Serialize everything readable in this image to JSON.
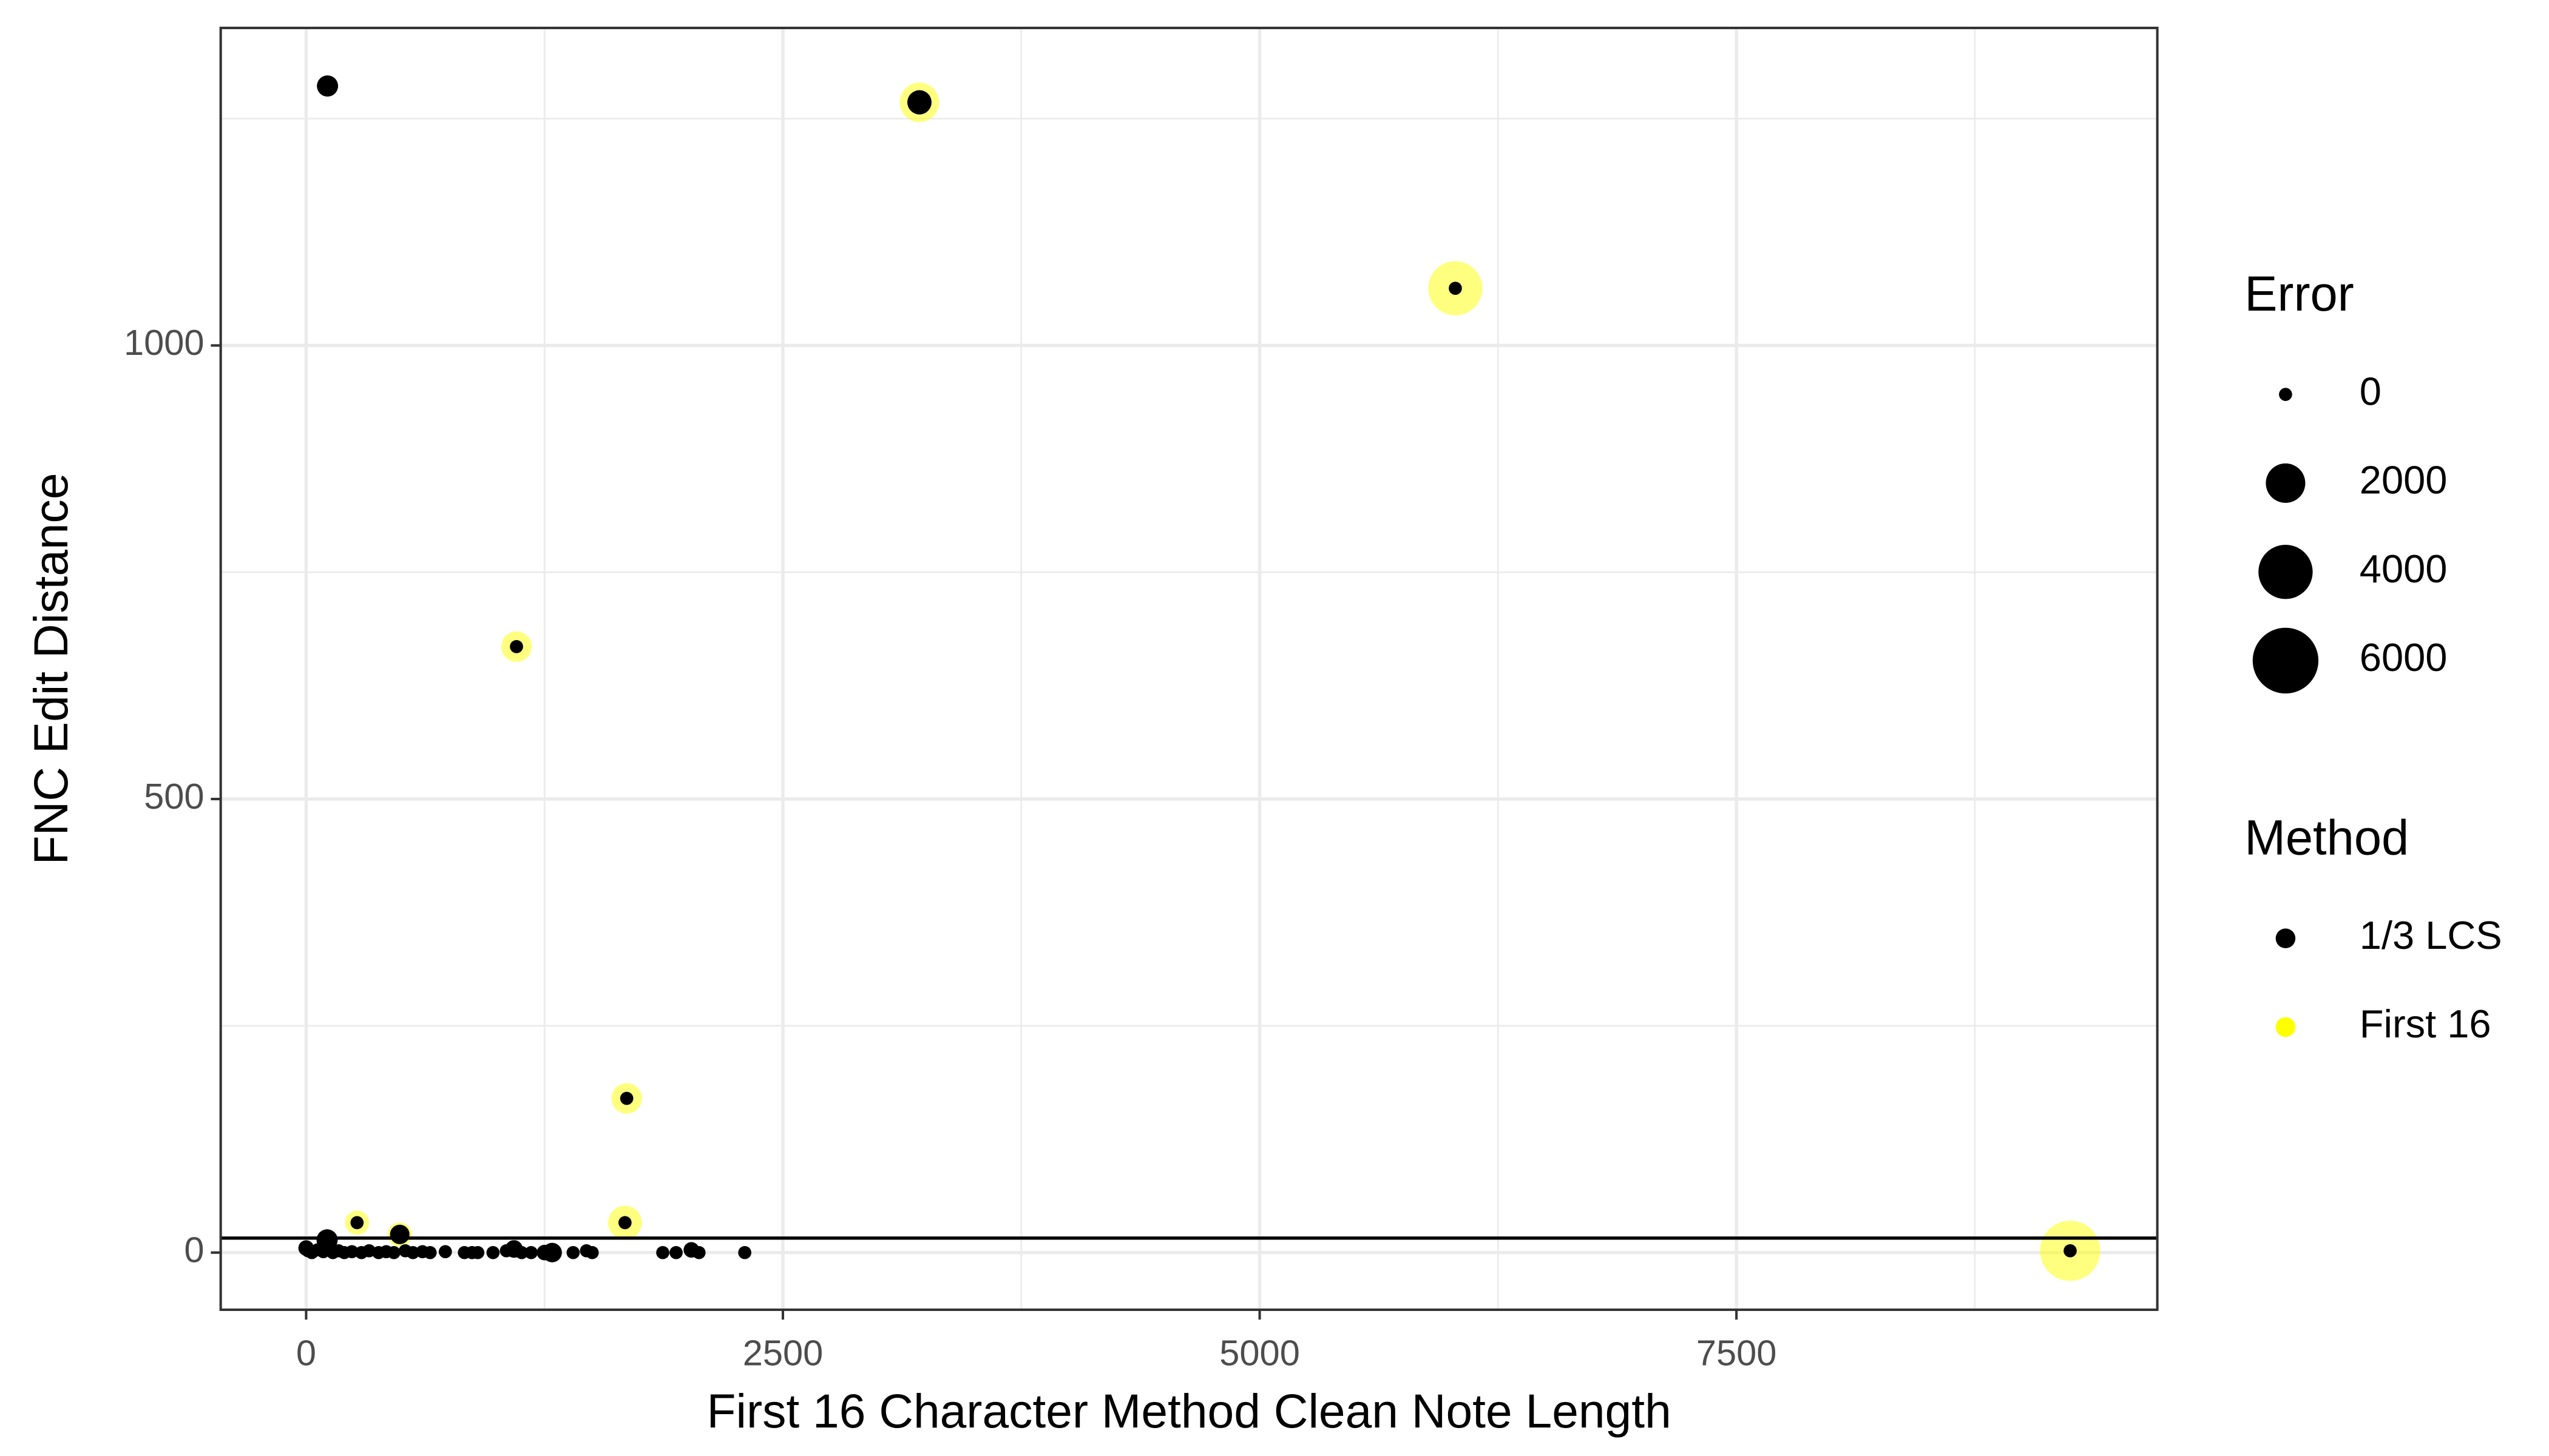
{
  "chart_data": {
    "type": "scatter",
    "x_label": "First 16 Character Method Clean Note Length",
    "y_label": "FNC Edit Distance",
    "xlim": [
      -448,
      9707
    ],
    "ylim": [
      -63,
      1350
    ],
    "xticks": [
      0,
      2500,
      5000,
      7500
    ],
    "yticks": [
      0,
      500,
      1000
    ],
    "x_minor_ticks": [
      1250,
      3750,
      6250,
      8750
    ],
    "y_minor_ticks": [
      250,
      750,
      1250
    ],
    "grid": true,
    "hline": 16,
    "size_legend": {
      "title": "Error",
      "values": [
        0,
        2000,
        4000,
        6000
      ],
      "value_labels": [
        "0",
        "2000",
        "4000",
        "6000"
      ]
    },
    "color_legend_title": "Method",
    "series": [
      {
        "name": "1/3 LCS",
        "color": "#000000",
        "alpha": 1,
        "x": [
          112,
          3216,
          6026,
          1103,
          1681,
          1672,
          267,
          491,
          9250,
          0,
          10,
          30,
          60,
          90,
          110,
          140,
          170,
          200,
          240,
          290,
          330,
          380,
          420,
          460,
          520,
          560,
          610,
          650,
          730,
          830,
          870,
          900,
          980,
          1050,
          1090,
          1130,
          1180,
          1250,
          1290,
          1400,
          1470,
          1500,
          1870,
          1940,
          2020,
          2060,
          2300
        ],
        "values": [
          1286,
          1268,
          1063,
          668,
          170,
          33,
          33,
          20,
          2,
          5,
          2,
          0,
          3,
          1,
          14,
          0,
          2,
          0,
          1,
          0,
          2,
          0,
          1,
          0,
          2,
          0,
          1,
          0,
          1,
          0,
          0,
          0,
          0,
          2,
          4,
          0,
          0,
          0,
          0,
          0,
          2,
          0,
          0,
          0,
          3,
          0,
          0
        ],
        "sizes": [
          400,
          600,
          0,
          0,
          0,
          0,
          0,
          300,
          0,
          100,
          0,
          0,
          0,
          0,
          400,
          0,
          0,
          0,
          0,
          0,
          0,
          0,
          0,
          0,
          0,
          0,
          0,
          0,
          0,
          0,
          0,
          0,
          0,
          0,
          200,
          0,
          0,
          100,
          300,
          0,
          0,
          0,
          0,
          0,
          100,
          0,
          0
        ]
      },
      {
        "name": "First 16",
        "color": "#ffff00",
        "alpha": 0.5,
        "x": [
          3216,
          6026,
          1103,
          1681,
          1672,
          267,
          491,
          9250
        ],
        "values": [
          1268,
          1063,
          668,
          170,
          33,
          33,
          20,
          2
        ],
        "sizes": [
          2000,
          4000,
          1100,
          1100,
          1400,
          600,
          600,
          5000
        ]
      }
    ]
  }
}
